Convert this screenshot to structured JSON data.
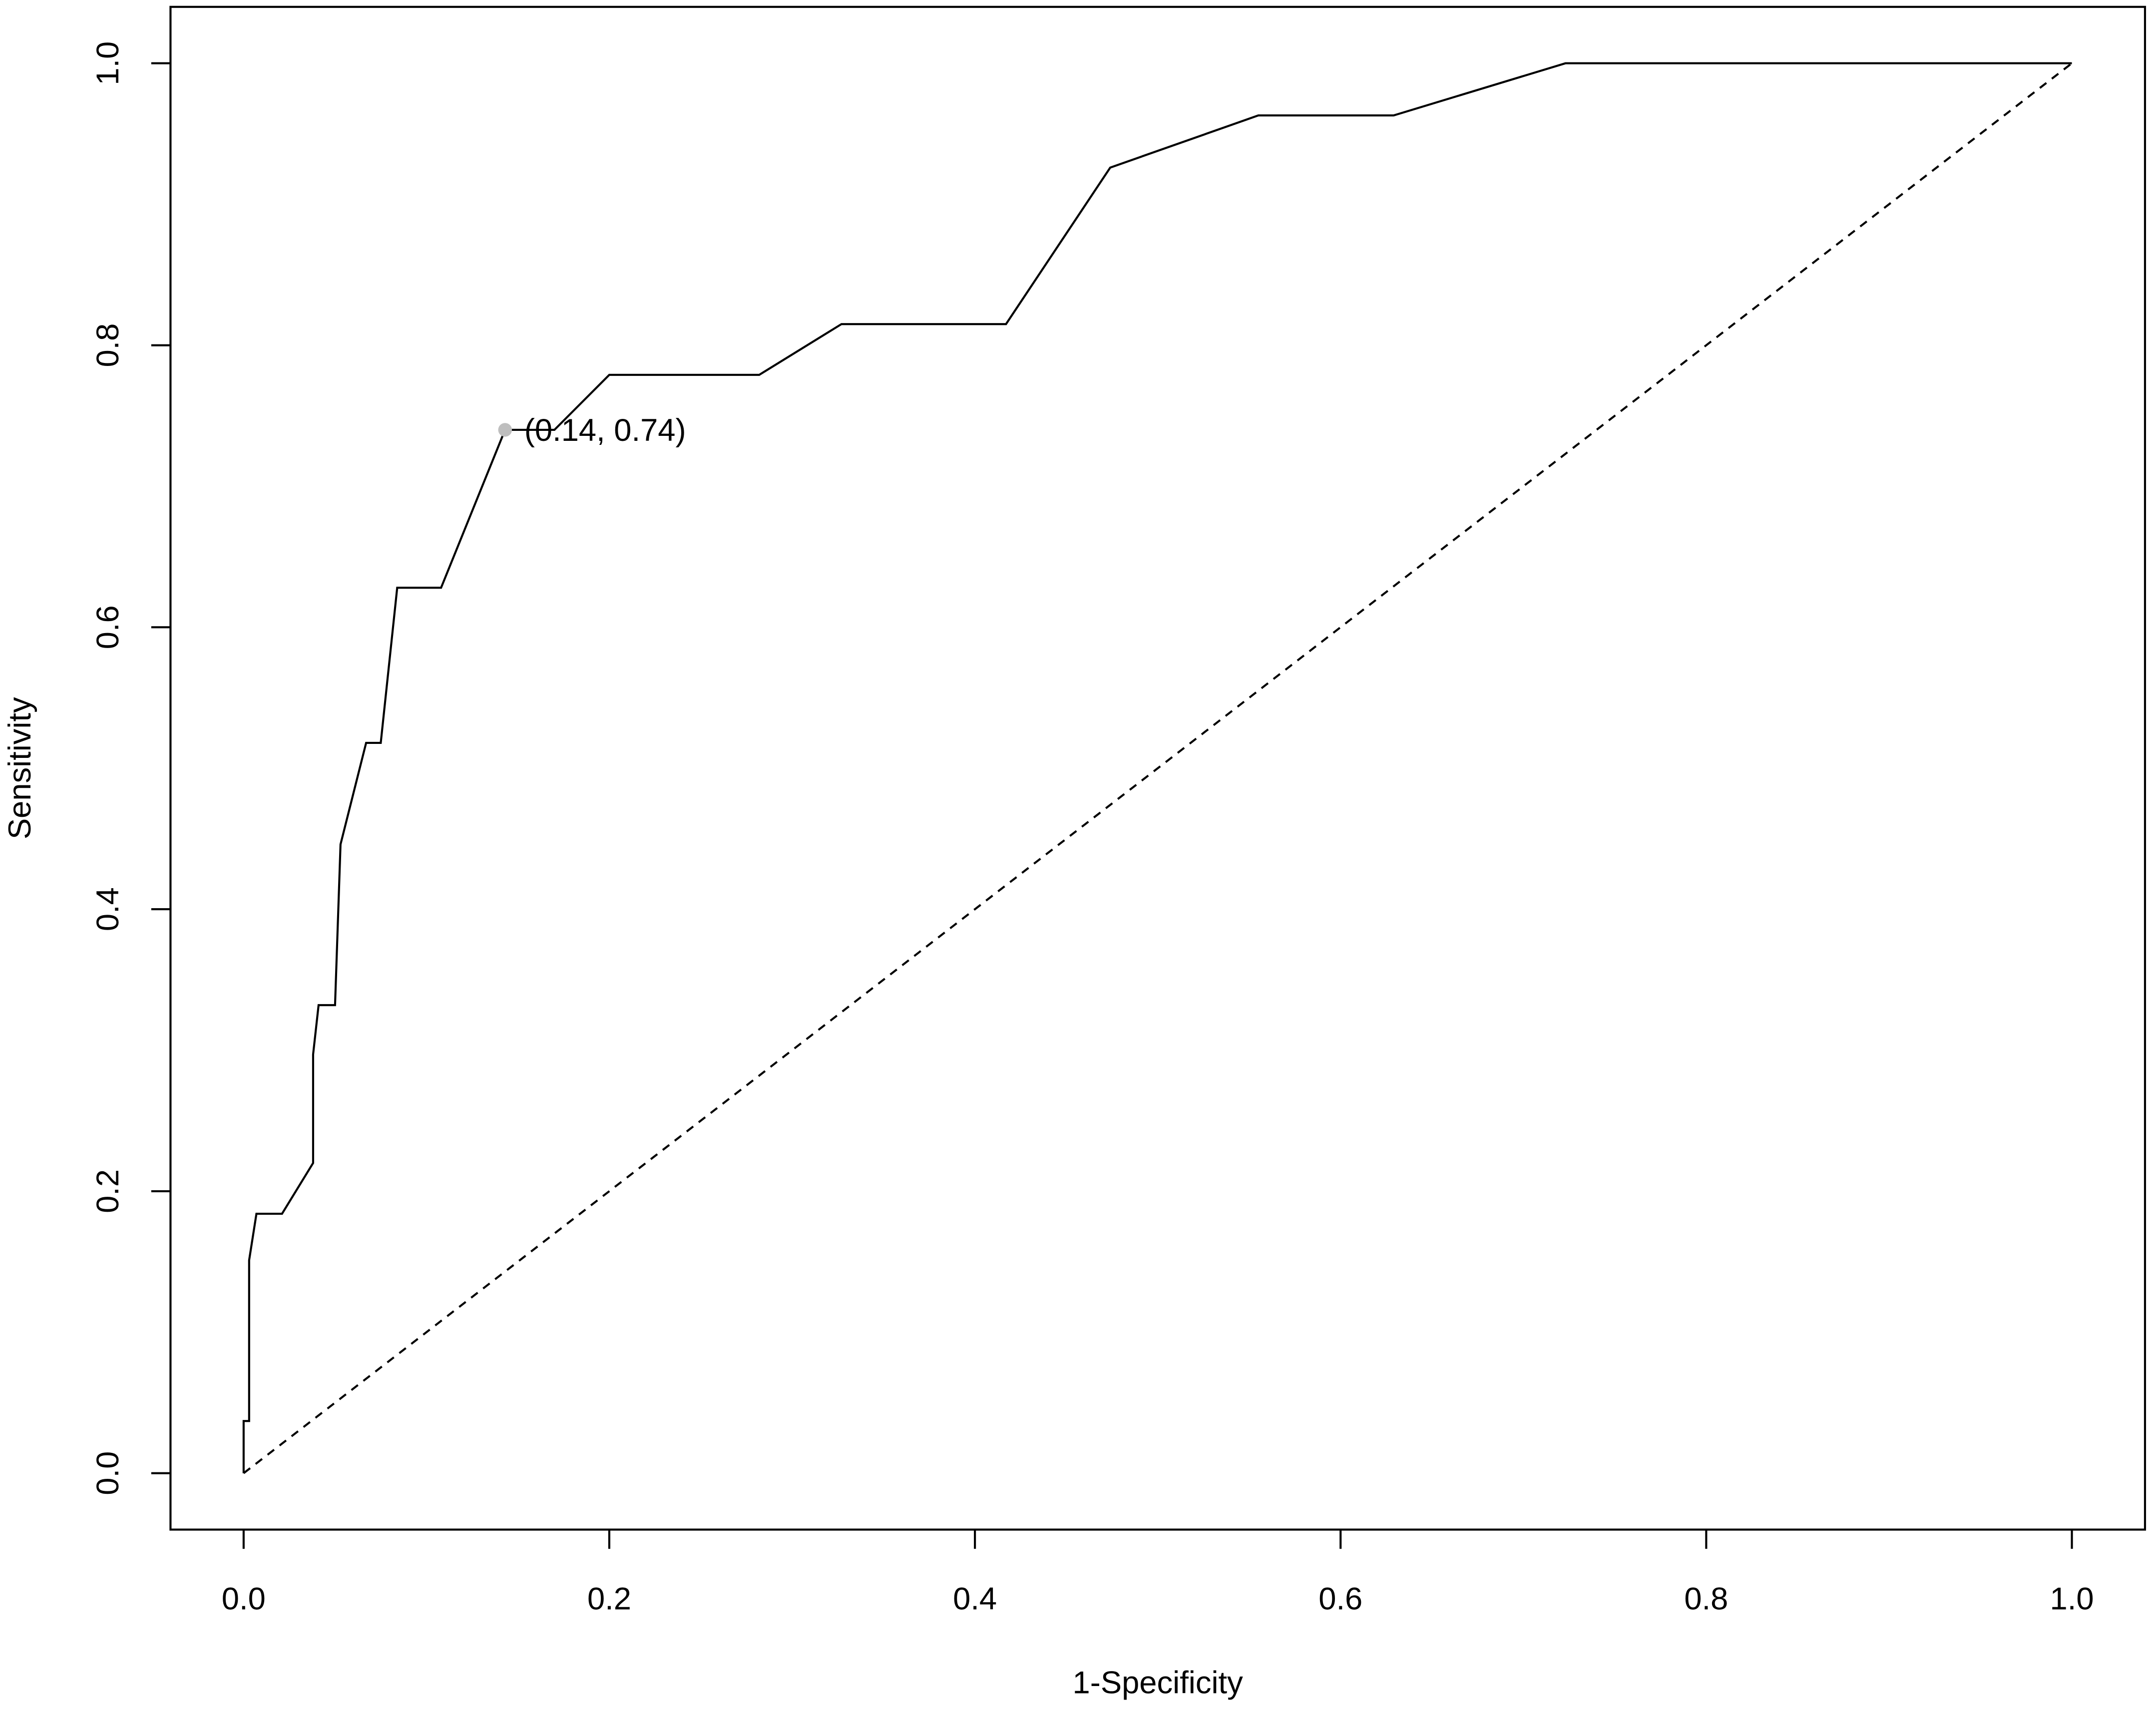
{
  "chart_data": {
    "type": "line",
    "x_label": "1-Specificity",
    "y_label": "Sensitivity",
    "xlim": [
      -0.04,
      1.04
    ],
    "ylim": [
      -0.04,
      1.04
    ],
    "xticks": [
      {
        "value": 0,
        "label": "0.0"
      },
      0.2,
      0.4,
      0.6,
      0.8,
      {
        "value": 1,
        "label": "1.0"
      }
    ],
    "yticks": [
      {
        "value": 0,
        "label": "0.0"
      },
      0.2,
      0.4,
      0.6,
      0.8,
      {
        "value": 1,
        "label": "1.0"
      }
    ],
    "series": [
      {
        "color": "#000000",
        "line_style": "solid",
        "x": [
          0,
          0,
          0.003,
          0.003,
          0.007,
          0.021,
          0.038,
          0.038,
          0.041,
          0.05,
          0.053,
          0.067,
          0.075,
          0.084,
          0.108,
          0.143,
          0.17,
          0.2,
          0.282,
          0.327,
          0.417,
          0.474,
          0.555,
          0.629,
          0.723,
          1
        ],
        "values": [
          0,
          0.037,
          0.037,
          0.151,
          0.184,
          0.184,
          0.22,
          0.297,
          0.332,
          0.332,
          0.446,
          0.518,
          0.518,
          0.628,
          0.628,
          0.74,
          0.74,
          0.779,
          0.779,
          0.815,
          0.815,
          0.926,
          0.963,
          0.963,
          1,
          1
        ]
      },
      {
        "color": "#000000",
        "line_style": "dashed",
        "x": [
          0,
          1
        ],
        "values": [
          0,
          1
        ]
      }
    ],
    "annotations": [
      {
        "text": "(0.14, 0.74)",
        "x": 0.143,
        "y": 0.74,
        "color": "#bebebe"
      }
    ]
  }
}
